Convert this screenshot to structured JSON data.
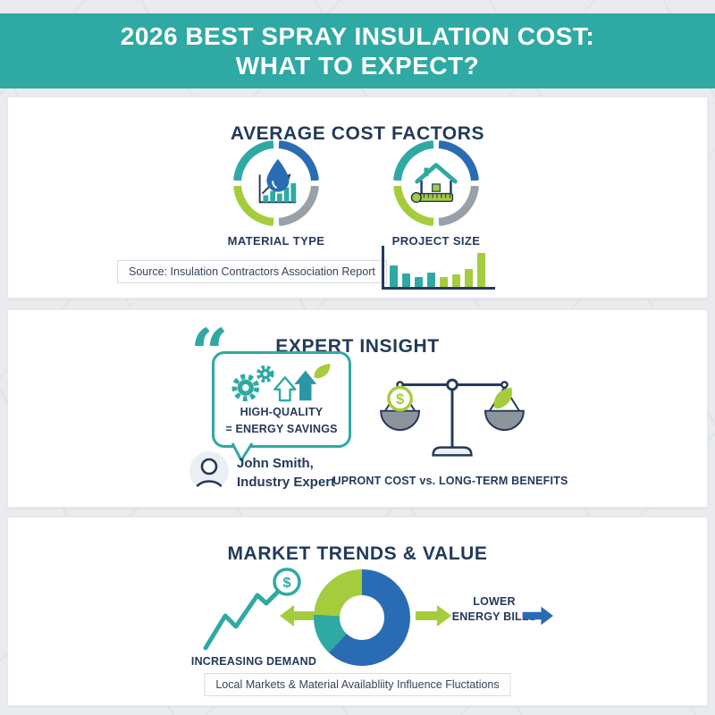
{
  "colors": {
    "teal": "#2fa9a3",
    "blue": "#2a6cb3",
    "green": "#a5cc3d",
    "gray": "#98a0a8",
    "navy": "#24395b",
    "ring_segments": [
      "#2a6cb3",
      "#98a0a8",
      "#a5cc3d",
      "#2fa9a3"
    ]
  },
  "header": {
    "line1": "2026 BEST SPRAY INSULATION COST:",
    "line2": "WHAT TO EXPECT?"
  },
  "cost_factors": {
    "heading": "AVERAGE COST FACTORS",
    "factors": [
      {
        "label": "MATERIAL TYPE",
        "icon": "droplet-trend-chart-icon"
      },
      {
        "label": "PROJECT SIZE",
        "icon": "house-measuring-tape-icon"
      }
    ],
    "source_note": "Source: Insulation Contractors Association Report",
    "chart_data": {
      "type": "bar",
      "values": [
        24,
        15,
        11,
        16,
        11,
        14,
        20,
        38
      ],
      "bar_colors": [
        "#2fa9a3",
        "#2fa9a3",
        "#2fa9a3",
        "#2fa9a3",
        "#a5cc3d",
        "#a5cc3d",
        "#a5cc3d",
        "#a5cc3d"
      ],
      "title": "",
      "axes_labeled": false
    }
  },
  "expert_insight": {
    "heading": "EXPERT INSIGHT",
    "quote_glyph": "“",
    "quote_line1": "HIGH-QUALITY",
    "quote_line2": "= ENERGY SAVINGS",
    "expert_name": "John Smith,",
    "expert_title": "Industry Expert",
    "scale_label": "UPRONT COST vs. LONG-TERM BENEFITS"
  },
  "market_trends": {
    "heading": "MARKET TRENDS & VALUE",
    "demand_label": "INCREASING DEMAND",
    "bills_line1": "LOWER",
    "bills_line2": "ENERGY BILLS",
    "source_note": "Local Markets & Material Availabliity Influence Fluctations",
    "chart_data": {
      "type": "pie",
      "segments": [
        {
          "label": "segment-blue",
          "value": 62,
          "color": "#2a6cb3"
        },
        {
          "label": "segment-teal",
          "value": 14,
          "color": "#2fa9a3"
        },
        {
          "label": "segment-green",
          "value": 24,
          "color": "#a5cc3d"
        }
      ],
      "donut_hole_ratio": 0.46,
      "legend": "none"
    }
  }
}
